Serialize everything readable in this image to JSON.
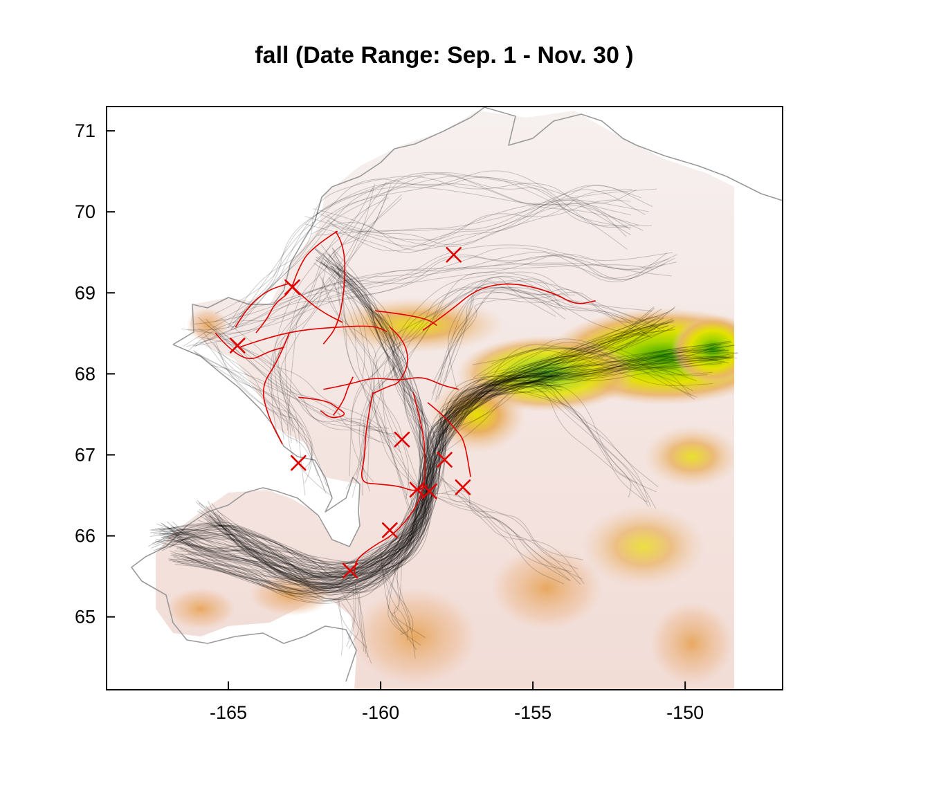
{
  "title": "fall (Date Range:  Sep. 1 - Nov. 30 )",
  "axes": {
    "x_range": [
      -169.0,
      -146.8
    ],
    "y_range": [
      64.1,
      71.3
    ],
    "x_ticks": [
      "-165",
      "-160",
      "-155",
      "-150"
    ],
    "x_tick_values": [
      -165,
      -160,
      -155,
      -150
    ],
    "y_ticks": [
      "65",
      "66",
      "67",
      "68",
      "69",
      "70",
      "71"
    ],
    "y_tick_values": [
      65,
      66,
      67,
      68,
      69,
      70,
      71
    ]
  },
  "colors": {
    "tracks": "#000000",
    "highlight_tracks": "#e00000",
    "markers": "#e00000",
    "coastline": "#9a9a9a",
    "terrain_low": "#f3d9d3",
    "terrain_mid": "#e8b06a",
    "terrain_high": "#e5e000",
    "terrain_peak": "#3aa000"
  },
  "markers": [
    {
      "lon": -157.6,
      "lat": 69.47
    },
    {
      "lon": -162.9,
      "lat": 69.07
    },
    {
      "lon": -164.7,
      "lat": 68.35
    },
    {
      "lon": -159.3,
      "lat": 67.19
    },
    {
      "lon": -162.7,
      "lat": 66.9
    },
    {
      "lon": -157.9,
      "lat": 66.94
    },
    {
      "lon": -157.3,
      "lat": 66.6
    },
    {
      "lon": -158.8,
      "lat": 66.57
    },
    {
      "lon": -158.4,
      "lat": 66.55
    },
    {
      "lon": -159.7,
      "lat": 66.07
    },
    {
      "lon": -161.0,
      "lat": 65.57
    }
  ]
}
